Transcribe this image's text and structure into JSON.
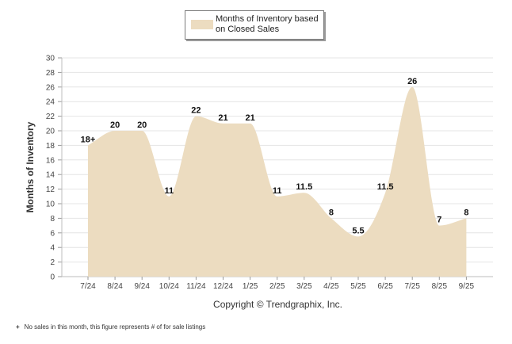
{
  "legend": {
    "label": "Months of Inventory based on Closed Sales",
    "color": "#ecdcc0"
  },
  "copyright": "Copyright © Trendgraphix, Inc.",
  "footnote": {
    "mark": "+",
    "text": "No sales in this month, this figure represents # of for sale listings"
  },
  "chart_data": {
    "type": "area",
    "title": "",
    "xlabel": "",
    "ylabel": "Months of Inventory",
    "ylim": [
      0,
      30
    ],
    "ytick_step": 2,
    "grid": true,
    "legend_position": "top-center",
    "fill_color": "#ecdcc0",
    "categories": [
      "7/24",
      "8/24",
      "9/24",
      "10/24",
      "11/24",
      "12/24",
      "1/25",
      "2/25",
      "3/25",
      "4/25",
      "5/25",
      "6/25",
      "7/25",
      "8/25",
      "9/25"
    ],
    "series": [
      {
        "name": "Months of Inventory based on Closed Sales",
        "values": [
          18,
          20,
          20,
          11,
          22,
          21,
          21,
          11,
          11.5,
          8,
          5.5,
          11.5,
          26,
          7,
          8
        ],
        "labels": [
          "18+",
          "20",
          "20",
          "11",
          "22",
          "21",
          "21",
          "11",
          "11.5",
          "8",
          "5.5",
          "11.5",
          "26",
          "7",
          "8"
        ]
      }
    ]
  }
}
